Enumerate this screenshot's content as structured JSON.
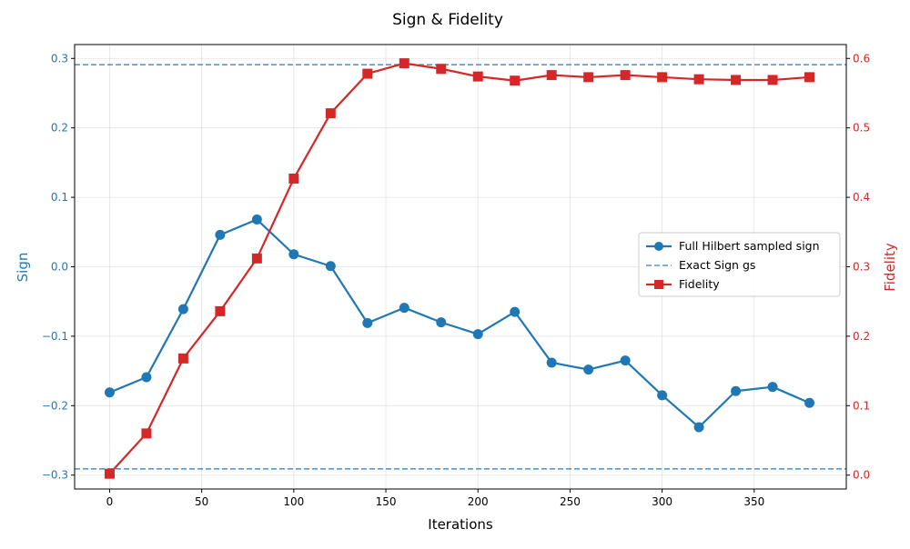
{
  "chart_data": {
    "type": "line",
    "title": "Sign & Fidelity",
    "xlabel": "Iterations",
    "ylabel_left": "Sign",
    "ylabel_right": "Fidelity",
    "xlim": [
      -19,
      400
    ],
    "ylim_left": [
      -0.32,
      0.32
    ],
    "ylim_right": [
      -0.02,
      0.62
    ],
    "x_ticks": [
      0,
      50,
      100,
      150,
      200,
      250,
      300,
      350
    ],
    "x_tick_labels": [
      "0",
      "50",
      "100",
      "150",
      "200",
      "250",
      "300",
      "350"
    ],
    "y_left_ticks": [
      -0.3,
      -0.2,
      -0.1,
      0.0,
      0.1,
      0.2,
      0.3
    ],
    "y_left_tick_labels": [
      "−0.3",
      "−0.2",
      "−0.1",
      "0.0",
      "0.1",
      "0.2",
      "0.3"
    ],
    "y_right_ticks": [
      0.0,
      0.1,
      0.2,
      0.3,
      0.4,
      0.5,
      0.6
    ],
    "y_right_tick_labels": [
      "0.0",
      "0.1",
      "0.2",
      "0.3",
      "0.4",
      "0.5",
      "0.6"
    ],
    "grid": true,
    "legend_position": "center-right",
    "x": [
      0,
      20,
      40,
      60,
      80,
      100,
      120,
      140,
      160,
      180,
      200,
      220,
      240,
      260,
      280,
      300,
      320,
      340,
      360,
      380
    ],
    "series": [
      {
        "name": "Full Hilbert sampled sign",
        "axis": "left",
        "color": "#1f77b4",
        "marker": "circle",
        "values": [
          -0.181,
          -0.159,
          -0.061,
          0.046,
          0.068,
          0.018,
          0.001,
          -0.081,
          -0.059,
          -0.08,
          -0.097,
          -0.065,
          -0.138,
          -0.148,
          -0.135,
          -0.185,
          -0.231,
          -0.179,
          -0.173,
          -0.196
        ]
      },
      {
        "name": "Fidelity",
        "axis": "right",
        "color": "#d62728",
        "marker": "square",
        "values": [
          0.002,
          0.06,
          0.168,
          0.236,
          0.312,
          0.427,
          0.521,
          0.578,
          0.593,
          0.585,
          0.574,
          0.568,
          0.576,
          0.573,
          0.576,
          0.573,
          0.57,
          0.569,
          0.569,
          0.573
        ]
      }
    ],
    "reference_lines": [
      {
        "name": "Exact Sign gs",
        "axis": "left",
        "value": 0.291,
        "color": "#1f77b4",
        "style": "dashed"
      },
      {
        "name": "",
        "axis": "left",
        "value": -0.291,
        "color": "#1f77b4",
        "style": "dashed"
      }
    ],
    "legend": [
      "Full Hilbert sampled sign",
      "Exact Sign gs",
      "Fidelity"
    ]
  }
}
